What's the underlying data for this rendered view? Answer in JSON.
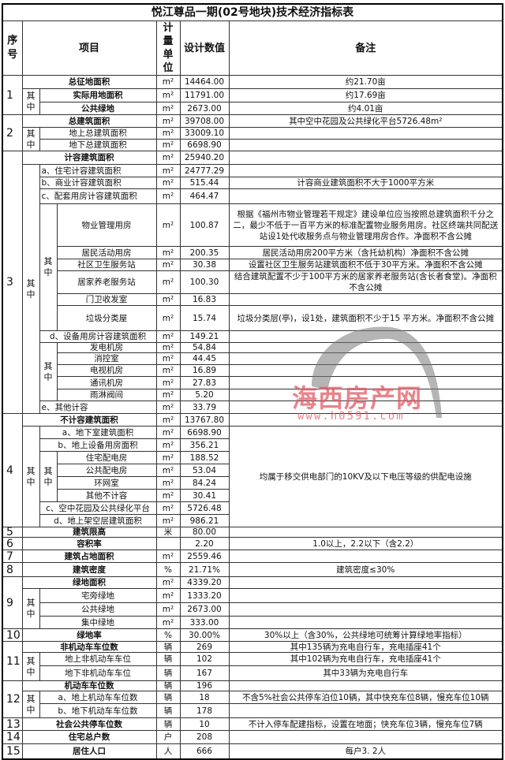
{
  "title": "悦江尊品一期(02号地块)技术经济指标表",
  "headers": {
    "seq": "序号",
    "item": "项目",
    "unit": "计量单位",
    "value": "设计数值",
    "note": "备注"
  },
  "labels": {
    "qizhong": "其中"
  },
  "watermark": {
    "name": "海西房产网",
    "url": "www.h0591.com"
  },
  "rows": [
    {
      "seq": "1",
      "label": "总征地面积",
      "unit": "m²",
      "value": "14464.00",
      "note": "约21.70亩"
    },
    {
      "label": "实际用地面积",
      "unit": "m²",
      "value": "11791.00",
      "note": "约17.69亩"
    },
    {
      "label": "公共绿地",
      "unit": "m²",
      "value": "2673.00",
      "note": "约4.01亩"
    },
    {
      "seq": "2",
      "label": "总建筑面积",
      "unit": "m²",
      "value": "39708.00",
      "note": "其中空中花园及公共绿化平台5726.48m²"
    },
    {
      "label": "地上总建筑面积",
      "unit": "m²",
      "value": "33009.10",
      "note": ""
    },
    {
      "label": "地下总建筑面积",
      "unit": "m²",
      "value": "6698.90",
      "note": ""
    },
    {
      "seq": "3",
      "label": "计容建筑面积",
      "unit": "m²",
      "value": "25940.20",
      "note": ""
    },
    {
      "label": "a、住宅计容建筑面积",
      "unit": "m²",
      "value": "24777.29",
      "note": ""
    },
    {
      "label": "b、商业计容建筑面积",
      "unit": "m²",
      "value": "515.44",
      "note": "计容商业建筑面积不大于1000平方米"
    },
    {
      "label": "c、配套用房计容建筑面积",
      "unit": "m²",
      "value": "464.47",
      "note": ""
    },
    {
      "label": "物业管理用房",
      "unit": "m²",
      "value": "100.87",
      "note": "根据《福州市物业管理若干规定》建设单位应当按照总建筑面积千分之二，最少不低于一百平方米的标准配置物业服务用房。社区终端共同配送站设1处代收服务点与物业管理用房合作。净面积不含公摊"
    },
    {
      "label": "居民活动用房",
      "unit": "m²",
      "value": "200.35",
      "note": "居民活动用房200平方米（含托幼机构）净面积不含公摊"
    },
    {
      "label": "社区卫生服务站",
      "unit": "m²",
      "value": "30.38",
      "note": "设置社区卫生服务站建筑面积不低于30平方米。净面积不含公摊"
    },
    {
      "label": "居家养老服务站",
      "unit": "m²",
      "value": "100.30",
      "note": "结合建筑配置不少于100平方米的居家养老服务站(含长者食堂)。净面积不含公摊"
    },
    {
      "label": "门卫收发室",
      "unit": "m²",
      "value": "16.83",
      "note": ""
    },
    {
      "label": "垃圾分类屋",
      "unit": "m²",
      "value": "15.74",
      "note": "垃圾分类层(亭)，设1处，建筑面积不少于15 平方米。净面积不含公摊"
    },
    {
      "label": "d、设备用房计容建筑面积",
      "unit": "m²",
      "value": "149.21",
      "note": ""
    },
    {
      "label": "发电机房",
      "unit": "m²",
      "value": "54.84",
      "note": ""
    },
    {
      "label": "消控室",
      "unit": "m²",
      "value": "44.45",
      "note": ""
    },
    {
      "label": "电视机房",
      "unit": "m²",
      "value": "16.89",
      "note": ""
    },
    {
      "label": "通讯机房",
      "unit": "m²",
      "value": "27.83",
      "note": ""
    },
    {
      "label": "雨淋阀间",
      "unit": "m²",
      "value": "5.20",
      "note": ""
    },
    {
      "label": "e、其他计容",
      "unit": "m²",
      "value": "33.79",
      "note": ""
    },
    {
      "seq": "4",
      "label": "不计容建筑面积",
      "unit": "m²",
      "value": "13767.80",
      "note": ""
    },
    {
      "label": "a、地下室建筑面积",
      "unit": "m²",
      "value": "6698.90",
      "note": "均属于移交供电部门的10KV及以下电压等级的供配电设施"
    },
    {
      "label": "b、地上设备用房面积",
      "unit": "m²",
      "value": "356.21"
    },
    {
      "label": "住宅配电房",
      "unit": "m²",
      "value": "188.52"
    },
    {
      "label": "公共配电房",
      "unit": "m²",
      "value": "53.04"
    },
    {
      "label": "环网室",
      "unit": "m²",
      "value": "84.24"
    },
    {
      "label": "其他不计容",
      "unit": "m²",
      "value": "30.41"
    },
    {
      "label": "c、空中花园及公共绿化平台",
      "unit": "m²",
      "value": "5726.48"
    },
    {
      "label": "d、地上架空层建筑面积",
      "unit": "m²",
      "value": "986.21"
    },
    {
      "seq": "5",
      "label": "建筑限高",
      "unit": "米",
      "value": "80.00",
      "note": ""
    },
    {
      "seq": "6",
      "label": "容积率",
      "unit": "",
      "value": "2.20",
      "note": "1.0以上，2.2以下（含2.2）"
    },
    {
      "seq": "7",
      "label": "建筑占地面积",
      "unit": "m²",
      "value": "2559.46",
      "note": ""
    },
    {
      "seq": "8",
      "label": "建筑密度",
      "unit": "%",
      "value": "21.71%",
      "note": "建筑密度≤30%"
    },
    {
      "seq": "9",
      "label": "绿地面积",
      "unit": "m²",
      "value": "4339.20",
      "note": ""
    },
    {
      "label": "宅旁绿地",
      "unit": "m²",
      "value": "1333.20",
      "note": ""
    },
    {
      "label": "公共绿地",
      "unit": "m²",
      "value": "2673.00",
      "note": ""
    },
    {
      "label": "集中绿地",
      "unit": "m²",
      "value": "333.00",
      "note": ""
    },
    {
      "seq": "10",
      "label": "绿地率",
      "unit": "%",
      "value": "30.00%",
      "note": "30%以上（含30%，公共绿地可统筹计算绿地率指标）"
    },
    {
      "seq": "11",
      "label": "非机动车车位数",
      "unit": "辆",
      "value": "269",
      "note": "其中135辆为充电自行车，充电插座41个"
    },
    {
      "label": "地上非机动车车位",
      "unit": "辆",
      "value": "102",
      "note": "其中102辆为充电自行车，充电插座41个"
    },
    {
      "label": "地下非机动车车位",
      "unit": "辆",
      "value": "167",
      "note": "其中33辆为充电自行车"
    },
    {
      "seq": "12",
      "label": "机动车车位数",
      "unit": "辆",
      "value": "196",
      "note": ""
    },
    {
      "label": "a、地上机动车车位数",
      "unit": "辆",
      "value": "18",
      "note": "不含5%社会公共停车泊位10辆，其中快充车位8辆，慢充车位10辆"
    },
    {
      "label": "b、地下机动车车位数",
      "unit": "辆",
      "value": "178",
      "note": ""
    },
    {
      "seq": "13",
      "label": "社会公共停车位数",
      "unit": "辆",
      "value": "10",
      "note": "不计入停车配建指标，设置在地面；快充车位3辆，慢充车位7辆"
    },
    {
      "seq": "14",
      "label": "住宅总户数",
      "unit": "户",
      "value": "208",
      "note": ""
    },
    {
      "seq": "15",
      "label": "居住人口",
      "unit": "人",
      "value": "666",
      "note": "每户3. 2人"
    }
  ]
}
